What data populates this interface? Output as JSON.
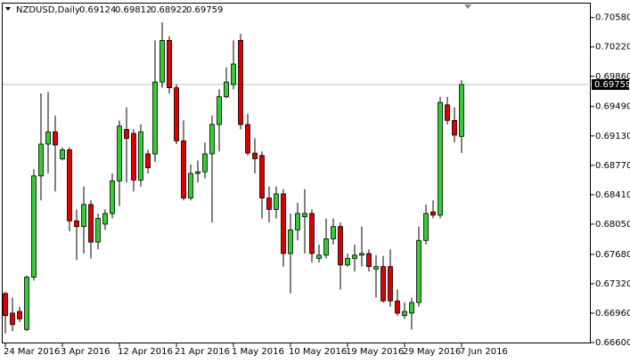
{
  "chart_data": {
    "type": "candlestick",
    "title": "NZDUSD,Daily",
    "categories": [
      "24 Mar 2016",
      null,
      null,
      null,
      null,
      null,
      null,
      null,
      "3 Apr 2016",
      null,
      null,
      null,
      null,
      null,
      null,
      null,
      "12 Apr 2016",
      null,
      null,
      null,
      null,
      null,
      null,
      null,
      "21 Apr 2016",
      null,
      null,
      null,
      null,
      null,
      null,
      null,
      "1 May 2016",
      null,
      null,
      null,
      null,
      null,
      null,
      null,
      "10 May 2016",
      null,
      null,
      null,
      null,
      null,
      null,
      null,
      "19 May 2016",
      null,
      null,
      null,
      null,
      null,
      null,
      null,
      "29 May 2016",
      null,
      null,
      null,
      null,
      null,
      null,
      null,
      "7 Jun 2016"
    ],
    "open": [
      0.672,
      0.6696,
      0.6698,
      0.6676,
      0.674,
      0.6864,
      0.6903,
      0.6918,
      0.6885,
      0.6896,
      0.6809,
      0.6802,
      0.6829,
      0.6783,
      0.6805,
      0.6818,
      0.6858,
      0.6921,
      0.6916,
      0.6859,
      0.6891,
      0.6891,
      0.6979,
      0.703,
      0.6972,
      0.6907,
      0.6837,
      0.6867,
      0.6869,
      0.6891,
      0.6927,
      0.6961,
      0.6976,
      0.703,
      0.6927,
      0.6892,
      0.6889,
      0.6837,
      0.6823,
      0.6842,
      0.6769,
      0.6798,
      0.6814,
      0.6818,
      0.6763,
      0.6767,
      0.6787,
      0.6802,
      0.6755,
      0.6763,
      0.6767,
      0.6769,
      0.675,
      0.6753,
      0.6753,
      0.6711,
      0.6693,
      0.6696,
      0.6709,
      0.6785,
      0.682,
      0.6816,
      0.6951,
      0.6932,
      0.69124
    ],
    "high": [
      0.6722,
      0.6715,
      0.6704,
      0.6742,
      0.6872,
      0.6965,
      0.6967,
      0.6938,
      0.6899,
      0.6899,
      0.6823,
      0.6851,
      0.6834,
      0.6818,
      0.6823,
      0.6867,
      0.6932,
      0.6948,
      0.6921,
      0.6927,
      0.6896,
      0.703,
      0.7052,
      0.7035,
      0.6976,
      0.6932,
      0.6878,
      0.6883,
      0.6905,
      0.6938,
      0.697,
      0.6997,
      0.703,
      0.7038,
      0.694,
      0.691,
      0.6894,
      0.6851,
      0.6851,
      0.6848,
      0.6818,
      0.6831,
      0.6848,
      0.6823,
      0.678,
      0.6812,
      0.6812,
      0.6807,
      0.6769,
      0.678,
      0.6802,
      0.6774,
      0.6767,
      0.6766,
      0.6774,
      0.6725,
      0.6709,
      0.6715,
      0.6802,
      0.6829,
      0.6834,
      0.6961,
      0.6961,
      0.6948,
      0.69812
    ],
    "low": [
      0.6671,
      0.6674,
      0.6685,
      0.6674,
      0.6736,
      0.6834,
      0.6867,
      0.6845,
      0.6883,
      0.6796,
      0.6761,
      0.6769,
      0.6763,
      0.6774,
      0.6798,
      0.6812,
      0.6827,
      0.6856,
      0.6845,
      0.6851,
      0.6867,
      0.6881,
      0.6972,
      0.6965,
      0.6903,
      0.6834,
      0.6834,
      0.6856,
      0.6861,
      0.6807,
      0.6894,
      0.6959,
      0.697,
      0.6921,
      0.6889,
      0.6867,
      0.6812,
      0.6807,
      0.6812,
      0.6753,
      0.672,
      0.6785,
      0.6769,
      0.6758,
      0.6758,
      0.6763,
      0.678,
      0.6725,
      0.6753,
      0.6747,
      0.6753,
      0.6747,
      0.6715,
      0.6709,
      0.6704,
      0.6693,
      0.6689,
      0.6676,
      0.6704,
      0.678,
      0.6812,
      0.6812,
      0.6927,
      0.6905,
      0.68922
    ],
    "close": [
      0.6693,
      0.6682,
      0.6689,
      0.674,
      0.6864,
      0.6903,
      0.6918,
      0.6902,
      0.6896,
      0.6809,
      0.6802,
      0.6829,
      0.6783,
      0.6812,
      0.6818,
      0.6858,
      0.6925,
      0.691,
      0.6859,
      0.6918,
      0.6874,
      0.6979,
      0.703,
      0.6972,
      0.6907,
      0.6837,
      0.6867,
      0.6869,
      0.6891,
      0.6927,
      0.6961,
      0.6979,
      0.7001,
      0.6927,
      0.6892,
      0.6885,
      0.6837,
      0.6823,
      0.6842,
      0.6769,
      0.6798,
      0.6818,
      0.6818,
      0.6769,
      0.6767,
      0.6787,
      0.6802,
      0.6755,
      0.6763,
      0.6767,
      0.6769,
      0.6753,
      0.6753,
      0.6711,
      0.6711,
      0.6696,
      0.6698,
      0.6709,
      0.6785,
      0.6818,
      0.6816,
      0.6954,
      0.6932,
      0.6914,
      0.69759
    ],
    "up_color": "#33cc33",
    "down_color": "#dd0000",
    "price_line_color": "#c0c0c0",
    "ylim": [
      0.666,
      0.7074
    ],
    "yticks": [
      {
        "value": 0.7058,
        "label": "0.70580"
      },
      {
        "value": 0.7022,
        "label": "0.70220"
      },
      {
        "value": 0.6986,
        "label": "0.69860"
      },
      {
        "value": 0.6949,
        "label": "0.69490"
      },
      {
        "value": 0.6913,
        "label": "0.69130"
      },
      {
        "value": 0.6877,
        "label": "0.68770"
      },
      {
        "value": 0.6841,
        "label": "0.68410"
      },
      {
        "value": 0.6805,
        "label": "0.68050"
      },
      {
        "value": 0.6768,
        "label": "0.67680"
      },
      {
        "value": 0.6732,
        "label": "0.67320"
      },
      {
        "value": 0.6696,
        "label": "0.66960"
      },
      {
        "value": 0.666,
        "label": "0.66600"
      }
    ],
    "grid": false
  }
}
